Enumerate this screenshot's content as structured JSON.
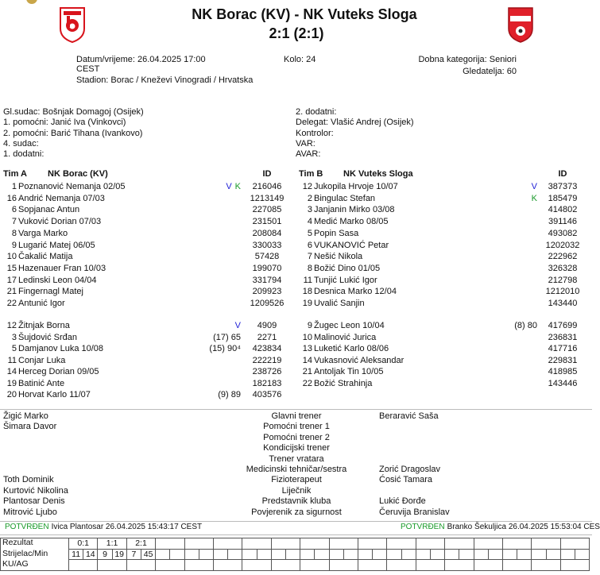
{
  "header": {
    "title": "NK Borac (KV) - NK Vuteks Sloga",
    "score": "2:1 (2:1)"
  },
  "info": {
    "datetime": "Datum/vrijeme: 26.04.2025 17:00",
    "timezone": "CEST",
    "stadium": "Stadion: Borac / Kneževi Vinogradi / Hrvatska",
    "round": "Kolo: 24",
    "category": "Dobna kategorija: Seniori",
    "attendance": "Gledatelja: 60"
  },
  "officials": {
    "left": [
      "Gl.sudac: Bošnjak Domagoj (Osijek)",
      "1. pomoćni: Janić Iva (Vinkovci)",
      "2. pomoćni: Barić Tihana (Ivankovo)",
      "4. sudac:",
      "1. dodatni:"
    ],
    "right": [
      "2. dodatni:",
      "Delegat: Vlašić Andrej (Osijek)",
      "Kontrolor:",
      "VAR:",
      "AVAR:"
    ]
  },
  "mark_colors": {
    "V": "#1f1fd6",
    "K": "#1a9a2a"
  },
  "teams": [
    {
      "label": "Tim A",
      "name": "NK Borac (KV)",
      "id_header": "ID",
      "starters": [
        {
          "number": 1,
          "name": "Poznanović Nemanja 02/05",
          "marks": [
            "V",
            "K"
          ],
          "id": 216046
        },
        {
          "number": 16,
          "name": "Andrić Nemanja 07/03",
          "id": 1213149
        },
        {
          "number": 6,
          "name": "Sopjanac Antun",
          "id": 227085
        },
        {
          "number": 7,
          "name": "Vuković Dorian 07/03",
          "id": 231501
        },
        {
          "number": 8,
          "name": "Varga Marko",
          "id": 208084
        },
        {
          "number": 9,
          "name": "Lugarić Matej 06/05",
          "id": 330033
        },
        {
          "number": 10,
          "name": "Čakalić Matija",
          "id": 57428
        },
        {
          "number": 15,
          "name": "Hazenauer Fran 10/03",
          "id": 199070
        },
        {
          "number": 17,
          "name": "Ledinski Leon 04/04",
          "id": 331794
        },
        {
          "number": 21,
          "name": "Fingernagl Matej",
          "id": 209923
        },
        {
          "number": 22,
          "name": "Antunić Igor",
          "id": 1209526
        }
      ],
      "substitutes": [
        {
          "number": 12,
          "name": "Žitnjak Borna",
          "marks": [
            "V"
          ],
          "id": 4909
        },
        {
          "number": 3,
          "name": "Šujdović Srđan",
          "marks": [
            "(17) 65"
          ],
          "id": 2271
        },
        {
          "number": 5,
          "name": "Damjanov Luka 10/08",
          "marks": [
            "(15) 90⁴"
          ],
          "id": 423834
        },
        {
          "number": 11,
          "name": "Conjar Luka",
          "id": 222219
        },
        {
          "number": 14,
          "name": "Herceg Dorian 09/05",
          "id": 238726
        },
        {
          "number": 19,
          "name": "Batinić Ante",
          "id": 182183
        },
        {
          "number": 20,
          "name": "Horvat Karlo 11/07",
          "marks": [
            "(9) 89"
          ],
          "id": 403576
        }
      ]
    },
    {
      "label": "Tim B",
      "name": "NK Vuteks Sloga",
      "id_header": "ID",
      "starters": [
        {
          "number": 12,
          "name": "Jukopila Hrvoje 10/07",
          "marks": [
            "V"
          ],
          "id": 387373
        },
        {
          "number": 2,
          "name": "Bingulac Stefan",
          "marks": [
            "K"
          ],
          "id": 185479
        },
        {
          "number": 3,
          "name": "Janjanin Mirko 03/08",
          "id": 414802
        },
        {
          "number": 4,
          "name": "Medić Marko 08/05",
          "id": 391146
        },
        {
          "number": 5,
          "name": "Popin Sasa",
          "id": 493082
        },
        {
          "number": 6,
          "name": "VUKANOVIĆ Petar",
          "id": 1202032
        },
        {
          "number": 7,
          "name": "Nešić Nikola",
          "id": 222962
        },
        {
          "number": 8,
          "name": "Božić Dino 01/05",
          "id": 326328
        },
        {
          "number": 11,
          "name": "Tunjić Lukić Igor",
          "id": 212798
        },
        {
          "number": 18,
          "name": "Desnica Marko 12/04",
          "id": 1212010
        },
        {
          "number": 19,
          "name": "Uvalić Sanjin",
          "id": 143440
        }
      ],
      "substitutes": [
        {
          "number": 9,
          "name": "Žugec Leon 10/04",
          "marks": [
            "(8) 80"
          ],
          "id": 417699
        },
        {
          "number": 10,
          "name": "Malinović Jurica",
          "id": 236831
        },
        {
          "number": 13,
          "name": "Luketić Karlo 08/06",
          "id": 417716
        },
        {
          "number": 14,
          "name": "Vukasnović Aleksandar",
          "id": 229831
        },
        {
          "number": 21,
          "name": "Antoljak Tin 10/05",
          "id": 418985
        },
        {
          "number": 22,
          "name": "Božić Strahinja",
          "id": 143446
        }
      ]
    }
  ],
  "staff": [
    {
      "role": "Glavni trener",
      "home": "Žigić Marko",
      "away": "Beraravić Saša"
    },
    {
      "role": "Pomoćni trener 1",
      "home": "Šimara Davor"
    },
    {
      "role": "Pomoćni trener 2"
    },
    {
      "role": "Kondicijski trener"
    },
    {
      "role": "Trener vratara"
    },
    {
      "role": "Medicinski tehničar/sestra",
      "away": "Zorić Dragoslav"
    },
    {
      "role": "Fizioterapeut",
      "home": "Toth Dominik",
      "away": "Ćosić Tamara"
    },
    {
      "role": "Liječnik",
      "home": "Kurtović Nikolina"
    },
    {
      "role": "Predstavnik kluba",
      "home": "Plantosar Denis",
      "away": "Lukić Đorđe"
    },
    {
      "role": "Povjerenik za sigurnost",
      "home": "Mitrović Ljubo",
      "away": "Čeruvija Branislav"
    }
  ],
  "confirmations": [
    {
      "status": "POTVRĐEN",
      "text": "Ivica Plantosar 26.04.2025 15:43:17 CEST"
    },
    {
      "status": "POTVRĐEN",
      "text": "Branko Šekuljica 26.04.2025 15:53:04 CEST"
    }
  ],
  "result_table": {
    "labels": [
      "Rezultat",
      "Strijelac/Min",
      "KU/AG"
    ],
    "goals": [
      {
        "score": "0:1",
        "scorer": 11,
        "minute": 14
      },
      {
        "score": "1:1",
        "scorer": 9,
        "minute": 19
      },
      {
        "score": "2:1",
        "scorer": 7,
        "minute": 45
      }
    ]
  }
}
